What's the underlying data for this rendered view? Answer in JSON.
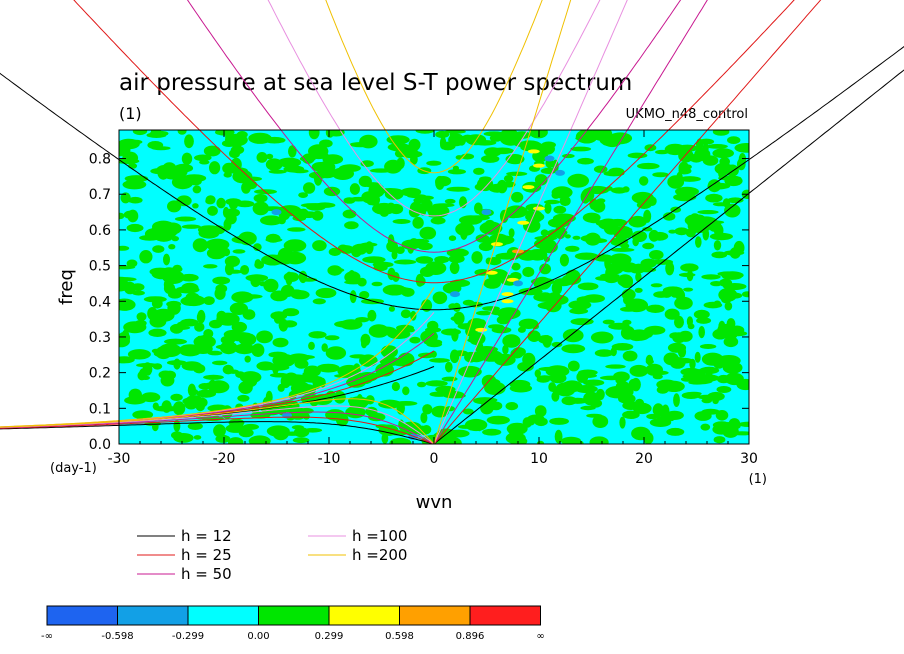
{
  "chart_data": {
    "type": "heatmap",
    "title": "air pressure at sea level S-T power spectrum",
    "title_units": "(1)",
    "dataset_label": "UKMO_n48_control",
    "xlabel": "wvn",
    "xlabel_units": "(1)",
    "ylabel": "freq",
    "ylabel_units": "(day-1)",
    "xlim": [
      -30,
      30
    ],
    "ylim": [
      0,
      0.88
    ],
    "x_ticks": [
      -30,
      -20,
      -10,
      0,
      10,
      20,
      30
    ],
    "x_tick_labels": [
      "-30",
      "-20",
      "-10",
      "0",
      "10",
      "20",
      "30"
    ],
    "y_ticks": [
      0.0,
      0.1,
      0.2,
      0.3,
      0.4,
      0.5,
      0.6,
      0.7,
      0.8
    ],
    "y_tick_labels": [
      "0.0",
      "0.1",
      "0.2",
      "0.3",
      "0.4",
      "0.5",
      "0.6",
      "0.7",
      "0.8"
    ],
    "dispersion_curves": [
      {
        "label": "h = 12",
        "h": 12,
        "color": "#000000"
      },
      {
        "label": "h = 25",
        "h": 25,
        "color": "#e01818"
      },
      {
        "label": "h = 50",
        "h": 50,
        "color": "#c81890"
      },
      {
        "label": "h =100",
        "h": 100,
        "color": "#e890e0"
      },
      {
        "label": "h =200",
        "h": 200,
        "color": "#f0c000"
      }
    ],
    "colorbar": {
      "levels": [
        "-∞",
        "-0.598",
        "-0.299",
        "0.00",
        "0.299",
        "0.598",
        "0.896",
        "∞"
      ],
      "colors": [
        "#1e64f0",
        "#12a0e6",
        "#00ffff",
        "#00e600",
        "#ffff00",
        "#ffa000",
        "#ff1e1e"
      ]
    }
  }
}
